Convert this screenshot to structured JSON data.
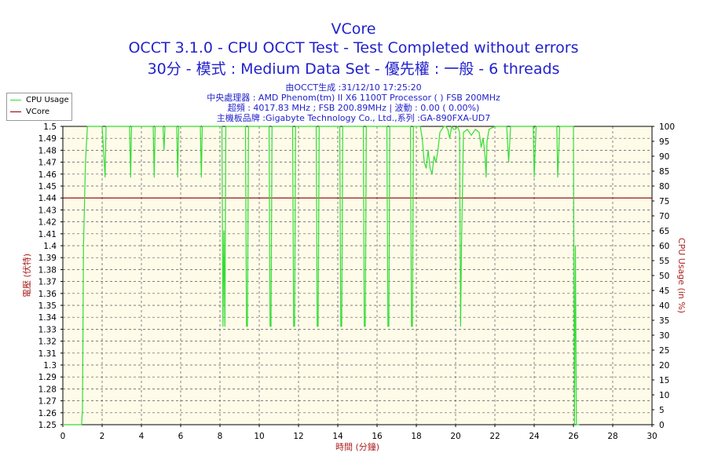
{
  "header": {
    "title": "VCore",
    "line1": "OCCT 3.1.0 - CPU OCCT Test - Test Completed without errors",
    "line2": "30分 - 模式 : Medium Data Set - 優先權 : 一般 - 6 threads",
    "info": [
      "由OCCT生成 :31/12/10 17:25:20",
      "中央處理器 : AMD Phenom(tm) II X6 1100T Processor (  ) FSB 200MHz",
      "超頻 : 4017.83 MHz ; FSB 200.89MHz | 波動 : 0.00 ( 0.00%)",
      "主機板品牌 :Gigabyte Technology Co., Ltd.,系列 :GA-890FXA-UD7"
    ]
  },
  "legend": {
    "items": [
      {
        "label": "CPU Usage",
        "color": "#33dd33"
      },
      {
        "label": "VCore",
        "color": "#880000"
      }
    ]
  },
  "chart_data": {
    "type": "line",
    "title": "VCore",
    "xlabel": "時間 (分鐘)",
    "ylabel": "電壓 (伏特)",
    "y2label": "CPU Usage (in %)",
    "xlim": [
      0,
      30
    ],
    "ylim": [
      1.25,
      1.5
    ],
    "y2lim": [
      0,
      100
    ],
    "x_ticks": [
      "0",
      "2",
      "4",
      "6",
      "8",
      "10",
      "12",
      "14",
      "16",
      "18",
      "20",
      "22",
      "24",
      "26",
      "28",
      "30"
    ],
    "y_ticks": [
      "1.25",
      "1.26",
      "1.27",
      "1.28",
      "1.29",
      "1.3",
      "1.31",
      "1.32",
      "1.33",
      "1.34",
      "1.35",
      "1.36",
      "1.37",
      "1.38",
      "1.39",
      "1.4",
      "1.41",
      "1.42",
      "1.43",
      "1.44",
      "1.45",
      "1.46",
      "1.47",
      "1.48",
      "1.49",
      "1.5"
    ],
    "y2_ticks": [
      "0",
      "5",
      "10",
      "15",
      "20",
      "25",
      "30",
      "35",
      "40",
      "45",
      "50",
      "55",
      "60",
      "65",
      "70",
      "75",
      "80",
      "85",
      "90",
      "95",
      "100"
    ],
    "grid": true,
    "background": "#fffbe9",
    "series": [
      {
        "name": "VCore",
        "axis": "left",
        "color": "#880000",
        "x": [
          0,
          30
        ],
        "y": [
          1.44,
          1.44
        ]
      },
      {
        "name": "CPU Usage",
        "axis": "right",
        "color": "#33dd33",
        "x": [
          0,
          0.95,
          1.0,
          1.05,
          1.15,
          1.25,
          1.5,
          2.0,
          2.15,
          2.2,
          2.25,
          2.4,
          3.0,
          3.4,
          3.45,
          3.5,
          4.0,
          4.6,
          4.65,
          4.7,
          5.1,
          5.15,
          5.2,
          5.8,
          5.85,
          5.9,
          6.6,
          7.0,
          7.05,
          7.1,
          7.5,
          8.1,
          8.15,
          8.2,
          8.25,
          8.3,
          9.0,
          9.3,
          9.35,
          9.4,
          9.45,
          10.2,
          10.5,
          10.55,
          10.6,
          10.65,
          11.0,
          11.7,
          11.75,
          11.8,
          11.85,
          12.5,
          12.9,
          12.95,
          13.0,
          13.05,
          13.7,
          14.1,
          14.15,
          14.2,
          14.25,
          15.0,
          15.3,
          15.35,
          15.4,
          15.45,
          16.0,
          16.5,
          16.55,
          16.6,
          16.65,
          17.3,
          17.7,
          17.75,
          17.8,
          17.85,
          18.2,
          18.3,
          18.4,
          18.5,
          18.6,
          18.7,
          18.8,
          18.9,
          19.0,
          19.1,
          19.2,
          19.3,
          19.4,
          19.5,
          19.6,
          19.7,
          19.8,
          19.9,
          20.0,
          20.1,
          20.2,
          20.25,
          20.3,
          20.4,
          20.6,
          20.8,
          21.0,
          21.2,
          21.3,
          21.4,
          21.5,
          21.55,
          21.6,
          21.7,
          22.0,
          22.3,
          22.6,
          22.7,
          22.8,
          23.2,
          23.5,
          23.9,
          23.95,
          24.0,
          24.1,
          24.4,
          24.8,
          25.1,
          25.15,
          25.2,
          25.3,
          25.6,
          26.0,
          26.05,
          26.1,
          26.15,
          26.3
        ],
        "y": [
          0,
          0,
          5,
          60,
          88,
          100,
          100,
          100,
          83,
          100,
          100,
          100,
          100,
          100,
          83,
          100,
          100,
          100,
          83,
          100,
          100,
          92,
          100,
          100,
          83,
          100,
          100,
          100,
          83,
          100,
          100,
          100,
          33,
          65,
          33,
          100,
          100,
          100,
          33,
          33,
          100,
          100,
          100,
          33,
          33,
          100,
          100,
          100,
          33,
          33,
          100,
          100,
          100,
          33,
          33,
          100,
          100,
          100,
          33,
          33,
          100,
          100,
          100,
          33,
          33,
          100,
          100,
          100,
          33,
          33,
          100,
          100,
          100,
          33,
          33,
          100,
          100,
          96,
          88,
          86,
          92,
          86,
          84,
          90,
          88,
          92,
          98,
          99,
          100,
          100,
          99,
          96,
          100,
          99,
          99,
          100,
          98,
          33,
          60,
          98,
          99,
          97,
          99,
          98,
          93,
          96,
          90,
          83,
          95,
          99,
          100,
          100,
          100,
          88,
          100,
          100,
          100,
          100,
          100,
          83,
          100,
          100,
          100,
          100,
          100,
          83,
          100,
          100,
          100,
          0,
          60,
          0,
          0
        ]
      }
    ]
  }
}
